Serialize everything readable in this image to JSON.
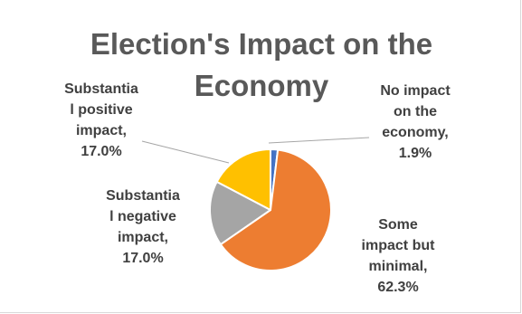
{
  "chart_data": {
    "type": "pie",
    "title_lines": [
      "Election's Impact on the",
      "Economy"
    ],
    "slices": [
      {
        "label_lines": [
          "No impact",
          "on the",
          "economy,",
          "1.9%"
        ],
        "value": 1.9,
        "color": "#4472c4"
      },
      {
        "label_lines": [
          "Some",
          "impact but",
          "minimal,",
          "62.3%"
        ],
        "value": 62.3,
        "color": "#ed7d31"
      },
      {
        "label_lines": [
          "Substantia",
          "l negative",
          "impact,",
          "17.0%"
        ],
        "value": 17.0,
        "color": "#a5a5a5"
      },
      {
        "label_lines": [
          "Substantia",
          "l positive",
          "impact,",
          "17.0%"
        ],
        "value": 17.0,
        "color": "#ffc000"
      }
    ]
  }
}
